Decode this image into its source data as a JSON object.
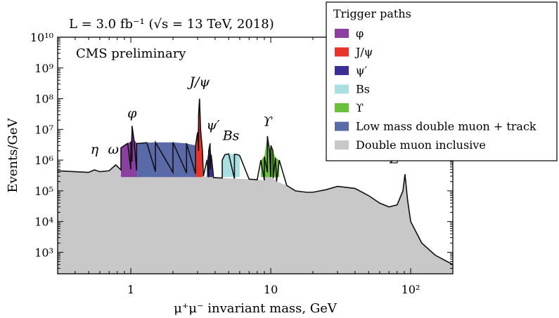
{
  "chart_data": {
    "type": "area",
    "title": "L = 3.0 fb⁻¹ (√s = 13 TeV, 2018)",
    "subtitle": "CMS preliminary",
    "xlabel": "μ⁺μ⁻ invariant mass, GeV",
    "ylabel": "Events/GeV",
    "xscale": "log",
    "yscale": "log",
    "xlim": [
      0.3,
      200
    ],
    "ylim": [
      200,
      10000000000
    ],
    "x_ticks": [
      {
        "value": 1,
        "label": "1"
      },
      {
        "value": 10,
        "label": "10"
      },
      {
        "value": 100,
        "label": "10²"
      }
    ],
    "y_ticks": [
      {
        "value": 1000,
        "label": "10³"
      },
      {
        "value": 10000,
        "label": "10⁴"
      },
      {
        "value": 100000,
        "label": "10⁵"
      },
      {
        "value": 1000000,
        "label": "10⁶"
      },
      {
        "value": 10000000,
        "label": "10⁷"
      },
      {
        "value": 100000000,
        "label": "10⁸"
      },
      {
        "value": 1000000000,
        "label": "10⁹"
      },
      {
        "value": 10000000000,
        "label": "10¹⁰"
      }
    ],
    "legend": {
      "title": "Trigger paths",
      "placement": "top-right",
      "entries": [
        {
          "name": "φ",
          "color": "#8b3fa0"
        },
        {
          "name": "J/ψ",
          "color": "#e8322a"
        },
        {
          "name": "ψ′",
          "color": "#3a2f96"
        },
        {
          "name": "Bs",
          "color": "#a9dfe3"
        },
        {
          "name": "ϒ",
          "color": "#6abf3c"
        },
        {
          "name": "Low mass double muon + track",
          "color": "#5a6aa8"
        },
        {
          "name": "Double muon inclusive",
          "color": "#c8c8c8"
        }
      ]
    },
    "annotations": [
      "η",
      "ω",
      "φ",
      "J/ψ",
      "ψ′",
      "Bs",
      "ϒ",
      "Z"
    ],
    "series": [
      {
        "name": "Double muon inclusive",
        "color": "#c8c8c8",
        "x": [
          0.3,
          0.4,
          0.5,
          0.55,
          0.6,
          0.7,
          0.78,
          0.85,
          1.0,
          1.02,
          1.1,
          1.5,
          2.0,
          2.5,
          2.9,
          3.05,
          3.3,
          3.6,
          3.69,
          3.9,
          4.5,
          5.5,
          7.0,
          8.0,
          9.0,
          9.46,
          10.0,
          10.4,
          11,
          13,
          15,
          18,
          20,
          25,
          30,
          40,
          50,
          60,
          70,
          80,
          88,
          91,
          95,
          100,
          120,
          150,
          200
        ],
        "y": [
          450000,
          420000,
          400000,
          480000,
          420000,
          450000,
          700000,
          480000,
          500000,
          900000,
          460000,
          420000,
          400000,
          380000,
          360000,
          2000000,
          300000,
          280000,
          500000,
          270000,
          260000,
          250000,
          240000,
          230000,
          220000,
          400000,
          280000,
          260000,
          200000,
          150000,
          100000,
          90000,
          90000,
          110000,
          140000,
          120000,
          70000,
          40000,
          30000,
          35000,
          100000,
          350000,
          50000,
          10000,
          2000,
          800,
          400
        ]
      },
      {
        "name": "φ",
        "color": "#8b3fa0",
        "x": [
          0.85,
          0.9,
          0.95,
          1.0,
          1.02,
          1.05,
          1.1,
          1.15
        ],
        "y": [
          2500000,
          3000000,
          3500000,
          4000000,
          13000000,
          5000000,
          3500000,
          3500000
        ]
      },
      {
        "name": "Low mass double muon + track",
        "color": "#5a6aa8",
        "x": [
          1.1,
          1.3,
          1.5,
          2.0,
          2.5,
          2.9
        ],
        "y": [
          3500000,
          3700000,
          3800000,
          3800000,
          3500000,
          3000000
        ]
      },
      {
        "name": "J/ψ",
        "color": "#e8322a",
        "x": [
          2.9,
          3.0,
          3.05,
          3.097,
          3.15,
          3.25
        ],
        "y": [
          3000000,
          8000000,
          30000000,
          100000000,
          10000000,
          2000000
        ]
      },
      {
        "name": "ψ′",
        "color": "#3a2f96",
        "x": [
          3.5,
          3.6,
          3.686,
          3.75,
          3.85
        ],
        "y": [
          1000000,
          2000000,
          3500000,
          1500000,
          500000
        ]
      },
      {
        "name": "Bs",
        "color": "#a9dfe3",
        "x": [
          4.5,
          4.7,
          5.0,
          5.5,
          5.8,
          6.0
        ],
        "y": [
          1000000,
          1500000,
          1600000,
          1550000,
          1500000,
          1400000
        ]
      },
      {
        "name": "ϒ",
        "color": "#6abf3c",
        "x": [
          8.5,
          9.0,
          9.46,
          9.8,
          10.02,
          10.36,
          10.8,
          11.5
        ],
        "y": [
          1000000,
          1300000,
          6000000,
          2000000,
          3000000,
          2000000,
          1200000,
          1000000
        ]
      }
    ]
  }
}
